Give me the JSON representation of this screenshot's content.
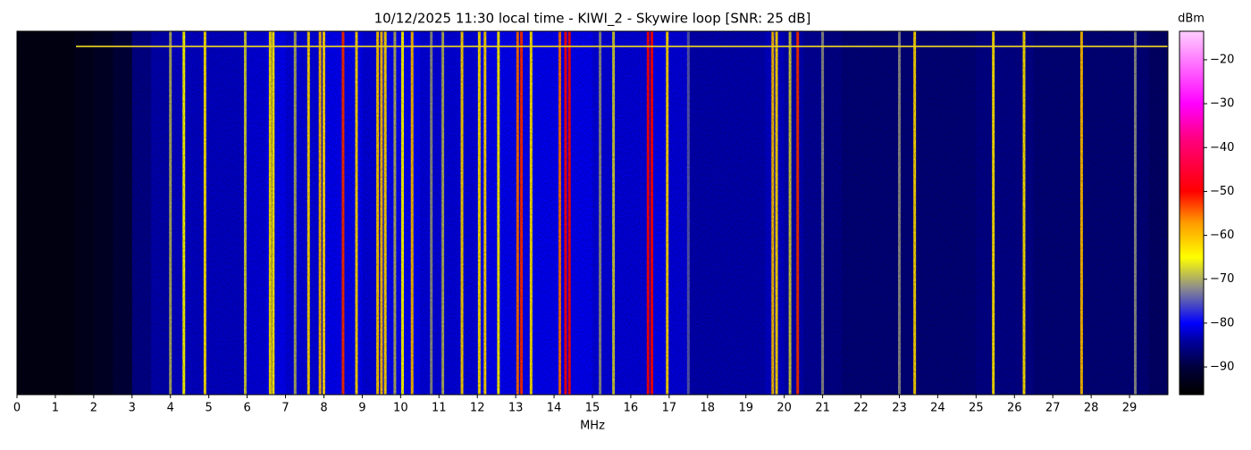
{
  "chart_data": {
    "type": "spectrogram",
    "title": "10/12/2025 11:30 local time - KIWI_2 - Skywire loop [SNR: 25 dB]",
    "x_label": "MHz",
    "colorbar_label": "dBm",
    "xlim": [
      0,
      30
    ],
    "xticks": [
      0,
      1,
      2,
      3,
      4,
      5,
      6,
      7,
      8,
      9,
      10,
      11,
      12,
      13,
      14,
      15,
      16,
      17,
      18,
      19,
      20,
      21,
      22,
      23,
      24,
      25,
      26,
      27,
      28,
      29
    ],
    "clim": [
      -96.3,
      -13.5
    ],
    "cticks": [
      {
        "value": -90,
        "label": "−90"
      },
      {
        "value": -80,
        "label": "−80"
      },
      {
        "value": -70,
        "label": "−70"
      },
      {
        "value": -60,
        "label": "−60"
      },
      {
        "value": -50,
        "label": "−50"
      },
      {
        "value": -40,
        "label": "−40"
      },
      {
        "value": -30,
        "label": "−30"
      },
      {
        "value": -20,
        "label": "−20"
      }
    ],
    "colormap": [
      {
        "value": -96,
        "color": "#000000"
      },
      {
        "value": -90,
        "color": "#00003c"
      },
      {
        "value": -84,
        "color": "#0000a0"
      },
      {
        "value": -80,
        "color": "#0000ff"
      },
      {
        "value": -72,
        "color": "#8c8c8c"
      },
      {
        "value": -65,
        "color": "#ffff00"
      },
      {
        "value": -57,
        "color": "#ff9900"
      },
      {
        "value": -50,
        "color": "#ff0000"
      },
      {
        "value": -38,
        "color": "#ff0080"
      },
      {
        "value": -30,
        "color": "#ff00ff"
      },
      {
        "value": -14,
        "color": "#ffc8ff"
      }
    ],
    "noise": {
      "x": [
        0,
        0.5,
        1,
        1.5,
        2,
        2.5,
        3,
        3.5,
        4,
        4.5,
        5,
        5.5,
        6,
        6.5,
        7,
        7.5,
        8,
        8.5,
        9,
        9.5,
        10,
        10.5,
        11,
        11.5,
        12,
        12.5,
        13,
        13.5,
        14,
        14.5,
        15,
        15.5,
        16,
        16.5,
        17,
        17.5,
        18,
        18.5,
        19,
        19.5,
        20,
        20.5,
        21,
        21.5,
        22,
        22.5,
        23,
        23.5,
        24,
        24.5,
        25,
        25.5,
        26,
        26.5,
        27,
        27.5,
        28,
        28.5,
        29,
        29.5
      ],
      "values": [
        -94,
        -94,
        -94,
        -93,
        -92,
        -90,
        -85,
        -83,
        -82,
        -82,
        -82,
        -82,
        -81,
        -80,
        -81,
        -81,
        -80,
        -80,
        -81,
        -80,
        -80,
        -81,
        -81,
        -81,
        -80,
        -80,
        -80,
        -80,
        -80,
        -80,
        -81,
        -81,
        -81,
        -80,
        -81,
        -83,
        -83,
        -83,
        -83,
        -82,
        -83,
        -84,
        -85,
        -86,
        -86,
        -86,
        -86,
        -86,
        -86,
        -86,
        -85,
        -85,
        -85,
        -86,
        -86,
        -86,
        -86,
        -86,
        -86,
        -87
      ]
    },
    "signals": {
      "x": [
        4.0,
        4.35,
        4.9,
        5.95,
        6.6,
        6.68,
        7.25,
        7.6,
        7.9,
        8.0,
        8.5,
        8.85,
        9.4,
        9.5,
        9.6,
        9.85,
        10.05,
        10.3,
        10.8,
        11.1,
        11.6,
        12.05,
        12.2,
        12.55,
        13.05,
        13.15,
        13.4,
        14.15,
        14.3,
        14.4,
        15.2,
        15.55,
        16.45,
        16.55,
        16.95,
        17.5,
        19.7,
        19.8,
        20.15,
        20.35,
        21.0,
        23.0,
        23.4,
        25.45,
        26.25,
        27.75,
        29.15
      ],
      "values": [
        -70,
        -65,
        -63,
        -68,
        -63,
        -64,
        -70,
        -62,
        -60,
        -62,
        -52,
        -62,
        -61,
        -60,
        -62,
        -70,
        -65,
        -60,
        -72,
        -70,
        -62,
        -63,
        -62,
        -64,
        -55,
        -52,
        -63,
        -55,
        -48,
        -50,
        -72,
        -68,
        -48,
        -50,
        -62,
        -75,
        -60,
        -62,
        -68,
        -52,
        -72,
        -72,
        -62,
        -63,
        -63,
        -60,
        -72
      ]
    }
  }
}
